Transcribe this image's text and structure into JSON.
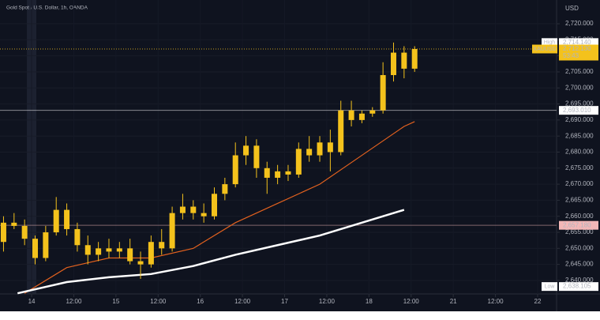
{
  "chart_data": {
    "type": "candlestick",
    "title": "Gold Spot / U.S. Dollar, 1h, OANDA",
    "currency": "USD",
    "candle_color": "#f4c21c",
    "grid": true,
    "x": [
      -8,
      -5,
      -2,
      1,
      4,
      7,
      10,
      13,
      16,
      19,
      22,
      25,
      28,
      31,
      34,
      37,
      40,
      43,
      46,
      49,
      52,
      55,
      58,
      61,
      64,
      67,
      70,
      73,
      76,
      79,
      82,
      85,
      88,
      91,
      94,
      97,
      100,
      103,
      106,
      109
    ],
    "open": [
      2652,
      2658,
      2657,
      2653,
      2647,
      2655,
      2662,
      2656,
      2651,
      2648,
      2650,
      2649,
      2650,
      2646,
      2645,
      2652,
      2650,
      2661,
      2663,
      2661,
      2660,
      2667,
      2670,
      2679,
      2682,
      2675,
      2672,
      2674,
      2673,
      2681,
      2679,
      2683,
      2680,
      2693,
      2690,
      2692,
      2693,
      2704,
      2711,
      2706
    ],
    "high": [
      2660,
      2661,
      2659,
      2654,
      2657,
      2666,
      2664,
      2658,
      2654,
      2652,
      2653,
      2652,
      2653,
      2649,
      2654,
      2656,
      2663,
      2667,
      2665,
      2664,
      2669,
      2672,
      2683,
      2685,
      2684,
      2677,
      2676,
      2676,
      2683,
      2685,
      2685,
      2687,
      2696,
      2696,
      2693,
      2694,
      2708,
      2714.14,
      2713,
      2713
    ],
    "low": [
      2649,
      2656,
      2651,
      2645,
      2646,
      2654,
      2654,
      2649,
      2645,
      2646,
      2647,
      2647,
      2645,
      2640.5,
      2644,
      2648,
      2649,
      2659,
      2659,
      2658,
      2659,
      2665,
      2669,
      2676,
      2672,
      2667,
      2670,
      2671,
      2672,
      2677,
      2677,
      2674,
      2679,
      2688,
      2689,
      2691,
      2692,
      2702,
      2703,
      2705
    ],
    "close": [
      2658,
      2657,
      2653,
      2647,
      2655,
      2662,
      2656,
      2651,
      2648,
      2650,
      2649,
      2650,
      2646,
      2645,
      2652,
      2650,
      2661,
      2663,
      2661,
      2660,
      2667,
      2670,
      2679,
      2682,
      2675,
      2672,
      2674,
      2673,
      2681,
      2679,
      2683,
      2680,
      2693,
      2690,
      2692,
      2693,
      2704,
      2711,
      2706,
      2712.13
    ],
    "overlays": [
      {
        "color": "#e2611f",
        "x": [
          -2,
          10,
          22,
          34,
          46,
          58,
          70,
          82,
          94,
          106,
          109
        ],
        "values": [
          2636,
          2644,
          2647,
          2647,
          2650,
          2658,
          2664,
          2670,
          2679,
          2688,
          2689.5
        ]
      },
      {
        "color": "#ffffff",
        "x": [
          -4,
          10,
          22,
          34,
          46,
          58,
          70,
          82,
          94,
          106
        ],
        "values": [
          2636,
          2639.5,
          2641,
          2642,
          2644.5,
          2648,
          2651,
          2654,
          2658,
          2662
        ]
      }
    ],
    "markers": [
      {
        "tag": "High",
        "value": 2714.14,
        "label": "2,714.140",
        "color": "#ffffff"
      },
      {
        "tag": "XAUUSD",
        "value": 2712.13,
        "label": "2,712.130",
        "countdown": "53:43",
        "color": "#f4c21c"
      },
      {
        "value": 2693.01,
        "label": "2,693.010",
        "color": "#ffffff"
      },
      {
        "value": 2657.18,
        "label": "2,657.180",
        "color": "#f3b7b7"
      },
      {
        "tag": "Low",
        "value": 2638.105,
        "label": "2,638.105",
        "color": "#ffffff"
      }
    ],
    "xlim": [
      -9,
      149.4
    ],
    "xticks": [
      {
        "value": 0,
        "label": "14"
      },
      {
        "value": 12,
        "label": "12:00"
      },
      {
        "value": 24,
        "label": "15"
      },
      {
        "value": 36,
        "label": "12:00"
      },
      {
        "value": 48,
        "label": "16"
      },
      {
        "value": 60,
        "label": "12:00"
      },
      {
        "value": 72,
        "label": "17"
      },
      {
        "value": 84,
        "label": "12:00"
      },
      {
        "value": 96,
        "label": "18"
      },
      {
        "value": 108,
        "label": "12:00"
      },
      {
        "value": 120,
        "label": "21"
      },
      {
        "value": 132,
        "label": "12:00"
      },
      {
        "value": 144,
        "label": "22"
      }
    ],
    "ylim": [
      2635.8,
      2727.4
    ],
    "yticks": [
      {
        "value": 2640,
        "label": "2,640.000"
      },
      {
        "value": 2645,
        "label": "2,645.000"
      },
      {
        "value": 2650,
        "label": "2,650.000"
      },
      {
        "value": 2655,
        "label": "2,655.000"
      },
      {
        "value": 2660,
        "label": "2,660.000"
      },
      {
        "value": 2665,
        "label": "2,665.000"
      },
      {
        "value": 2670,
        "label": "2,670.000"
      },
      {
        "value": 2675,
        "label": "2,675.000"
      },
      {
        "value": 2680,
        "label": "2,680.000"
      },
      {
        "value": 2685,
        "label": "2,685.000"
      },
      {
        "value": 2690,
        "label": "2,690.000"
      },
      {
        "value": 2695,
        "label": "2,695.000"
      },
      {
        "value": 2700,
        "label": "2,700.000"
      },
      {
        "value": 2705,
        "label": "2,705.000"
      },
      {
        "value": 2710,
        "label": "2,710.000"
      },
      {
        "value": 2715,
        "label": "2,715.000"
      },
      {
        "value": 2720,
        "label": "2,720.000"
      }
    ]
  }
}
